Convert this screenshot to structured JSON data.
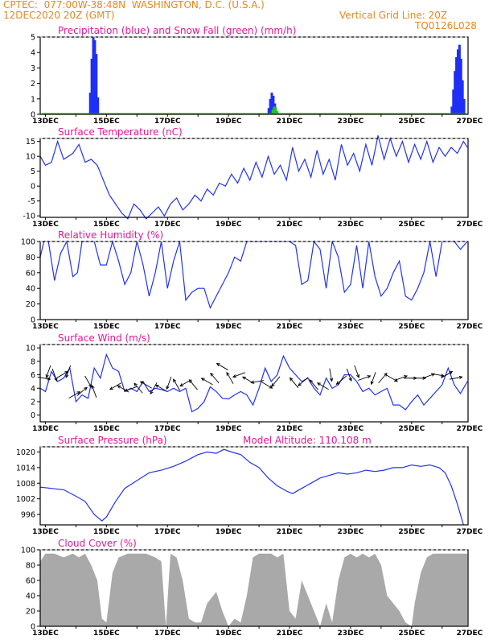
{
  "header": {
    "line1_left": "CPTEC:  077:00W-38:48N  WASHINGTON, D.C. (U.S.A.)",
    "line2_left": "12DEC2020 20Z (GMT)",
    "line2_right": "Vertical Grid Line: 20Z",
    "line3_right": "TQ0126L028"
  },
  "colors": {
    "header": "#e8871e",
    "panel_title": "#e0189a",
    "precip": "#1f2ff5",
    "snow": "#1ec51e",
    "line": "#2233ee",
    "cloud": "#a9a9a9",
    "arrow": "#000000"
  },
  "chart_data": [
    {
      "id": "precip",
      "type": "bar",
      "title": "Precipitation (blue) and Snow Fall (green) (mm/h)",
      "x_tick_labels": [
        "13DEC",
        "15DEC",
        "17DEC",
        "19DEC",
        "21DEC",
        "23DEC",
        "25DEC",
        "27DEC"
      ],
      "ylim": [
        0,
        5
      ],
      "y_ticks": [
        0,
        1,
        2,
        3,
        4,
        5
      ],
      "series": [
        {
          "color": "#1f2ff5",
          "x": [
            14.47,
            14.52,
            14.57,
            14.62,
            14.67,
            14.72,
            20.32,
            20.37,
            20.42,
            20.47,
            20.52,
            20.57,
            26.32,
            26.37,
            26.42,
            26.47,
            26.52,
            26.57,
            26.62,
            26.67,
            26.72
          ],
          "values": [
            1.4,
            3.6,
            5.0,
            4.8,
            3.9,
            1.1,
            0.4,
            1.0,
            1.4,
            1.2,
            0.7,
            0.2,
            0.5,
            1.6,
            2.8,
            3.7,
            4.2,
            4.5,
            3.6,
            2.2,
            1.0
          ]
        },
        {
          "color": "#1ec51e",
          "x": [
            20.45,
            20.5,
            20.55,
            20.6
          ],
          "values": [
            0.3,
            0.5,
            0.45,
            0.2
          ]
        }
      ]
    },
    {
      "id": "temperature",
      "type": "line",
      "title": "Surface Temperature (nC)",
      "x_tick_labels": [
        "13DEC",
        "15DEC",
        "17DEC",
        "19DEC",
        "21DEC",
        "23DEC",
        "25DEC",
        "27DEC"
      ],
      "ylim": [
        -10.5,
        16
      ],
      "y_ticks": [
        -10,
        -5,
        0,
        5,
        10,
        15
      ],
      "x": [
        12.83,
        13.0,
        13.2,
        13.4,
        13.6,
        13.75,
        13.9,
        14.1,
        14.3,
        14.5,
        14.7,
        14.9,
        15.1,
        15.3,
        15.5,
        15.7,
        15.9,
        16.1,
        16.3,
        16.5,
        16.7,
        16.9,
        17.1,
        17.3,
        17.5,
        17.7,
        17.9,
        18.1,
        18.3,
        18.5,
        18.7,
        18.9,
        19.1,
        19.3,
        19.5,
        19.7,
        19.9,
        20.1,
        20.3,
        20.5,
        20.7,
        20.9,
        21.1,
        21.3,
        21.5,
        21.7,
        21.9,
        22.1,
        22.3,
        22.5,
        22.7,
        22.9,
        23.1,
        23.3,
        23.5,
        23.7,
        23.9,
        24.1,
        24.3,
        24.5,
        24.7,
        24.9,
        25.1,
        25.3,
        25.5,
        25.7,
        25.9,
        26.1,
        26.3,
        26.5,
        26.7,
        26.83
      ],
      "values": [
        10,
        7,
        8,
        15,
        9,
        10,
        11,
        14,
        8,
        9,
        7,
        2,
        -3,
        -6,
        -9,
        -11,
        -6,
        -8,
        -11,
        -9,
        -7,
        -10,
        -6,
        -4,
        -8,
        -6,
        -3,
        -5,
        -1,
        -3,
        1,
        0,
        4,
        1,
        6,
        2,
        8,
        3,
        10,
        4,
        7,
        2,
        13,
        5,
        9,
        3,
        12,
        4,
        9,
        2,
        14,
        7,
        11,
        5,
        14,
        7,
        17,
        9,
        16,
        10,
        15,
        8,
        14,
        9,
        15,
        8,
        13,
        10,
        13,
        11,
        15,
        13
      ]
    },
    {
      "id": "humidity",
      "type": "line",
      "title": "Relative Humidity (%)",
      "x_tick_labels": [
        "13DEC",
        "15DEC",
        "17DEC",
        "19DEC",
        "21DEC",
        "23DEC",
        "25DEC",
        "27DEC"
      ],
      "ylim": [
        0,
        100
      ],
      "y_ticks": [
        0,
        20,
        40,
        60,
        80,
        100
      ],
      "x": [
        12.83,
        12.95,
        13.1,
        13.3,
        13.5,
        13.7,
        13.9,
        14.05,
        14.2,
        14.4,
        14.6,
        14.8,
        15.0,
        15.2,
        15.4,
        15.6,
        15.8,
        16.0,
        16.2,
        16.4,
        16.6,
        16.8,
        17.0,
        17.2,
        17.4,
        17.6,
        17.8,
        18.0,
        18.2,
        18.4,
        18.6,
        18.8,
        19.0,
        19.2,
        19.4,
        19.6,
        19.8,
        20.0,
        20.2,
        20.4,
        20.6,
        20.8,
        21.0,
        21.2,
        21.4,
        21.6,
        21.8,
        22.0,
        22.2,
        22.4,
        22.6,
        22.8,
        23.0,
        23.2,
        23.4,
        23.6,
        23.8,
        24.0,
        24.2,
        24.4,
        24.6,
        24.8,
        25.0,
        25.2,
        25.4,
        25.6,
        25.8,
        26.0,
        26.2,
        26.4,
        26.6,
        26.83
      ],
      "values": [
        80,
        100,
        100,
        50,
        85,
        100,
        55,
        60,
        100,
        100,
        100,
        70,
        70,
        100,
        75,
        45,
        60,
        100,
        70,
        30,
        60,
        100,
        40,
        75,
        100,
        25,
        35,
        40,
        40,
        15,
        30,
        45,
        60,
        80,
        75,
        100,
        100,
        100,
        100,
        100,
        100,
        100,
        100,
        95,
        45,
        50,
        100,
        90,
        40,
        100,
        80,
        35,
        45,
        95,
        40,
        100,
        55,
        30,
        40,
        60,
        75,
        30,
        25,
        40,
        60,
        100,
        55,
        100,
        100,
        100,
        90,
        100
      ]
    },
    {
      "id": "wind",
      "type": "line",
      "title": "Surface Wind (m/s)",
      "x_tick_labels": [
        "13DEC",
        "15DEC",
        "17DEC",
        "19DEC",
        "21DEC",
        "23DEC",
        "25DEC",
        "27DEC"
      ],
      "ylim": [
        -1,
        10.5
      ],
      "y_ticks": [
        0,
        2,
        4,
        6,
        8,
        10
      ],
      "x": [
        12.83,
        13.0,
        13.2,
        13.4,
        13.6,
        13.8,
        14.0,
        14.2,
        14.4,
        14.6,
        14.8,
        15.0,
        15.2,
        15.4,
        15.6,
        15.8,
        16.0,
        16.2,
        16.4,
        16.6,
        16.8,
        17.0,
        17.2,
        17.4,
        17.6,
        17.8,
        18.0,
        18.2,
        18.4,
        18.6,
        18.8,
        19.0,
        19.2,
        19.4,
        19.6,
        19.8,
        20.0,
        20.2,
        20.4,
        20.6,
        20.8,
        21.0,
        21.2,
        21.4,
        21.6,
        21.8,
        22.0,
        22.2,
        22.4,
        22.6,
        22.8,
        23.0,
        23.2,
        23.4,
        23.6,
        23.8,
        24.0,
        24.2,
        24.4,
        24.6,
        24.8,
        25.0,
        25.2,
        25.4,
        25.6,
        25.8,
        26.0,
        26.2,
        26.4,
        26.6,
        26.83
      ],
      "values": [
        4,
        3.5,
        6.5,
        5,
        5.5,
        7,
        2,
        3,
        2.5,
        7,
        5.5,
        9,
        7,
        6.5,
        3.5,
        4,
        3.5,
        5,
        3.5,
        4,
        3.8,
        3.5,
        4,
        3.5,
        4,
        0.5,
        1,
        2,
        4.2,
        3.5,
        2.5,
        2.4,
        3,
        3.5,
        3,
        1.5,
        4,
        7,
        5,
        6,
        8.8,
        7,
        6,
        5,
        5.5,
        4,
        3,
        5.5,
        4,
        4.5,
        6,
        6,
        5,
        3.5,
        4,
        3,
        3.5,
        4,
        1.5,
        1.5,
        0.8,
        2,
        3,
        1.5,
        2.5,
        3.5,
        4.5,
        7,
        4.5,
        3.2,
        5
      ]
    },
    {
      "id": "pressure",
      "type": "line",
      "title": "Surface Pressure (hPa)",
      "annotation": "Model Altitude: 110.108 m",
      "x_tick_labels": [
        "13DEC",
        "15DEC",
        "17DEC",
        "19DEC",
        "21DEC",
        "23DEC",
        "25DEC",
        "27DEC"
      ],
      "ylim": [
        992,
        1022
      ],
      "y_ticks": [
        996,
        1002,
        1008,
        1014,
        1020
      ],
      "x": [
        12.83,
        13.2,
        13.6,
        14.0,
        14.3,
        14.6,
        14.85,
        15.0,
        15.3,
        15.6,
        16.0,
        16.4,
        16.8,
        17.2,
        17.6,
        18.0,
        18.3,
        18.6,
        18.85,
        19.1,
        19.4,
        19.7,
        20.0,
        20.3,
        20.6,
        20.9,
        21.1,
        21.4,
        21.7,
        22.0,
        22.3,
        22.6,
        22.9,
        23.2,
        23.5,
        23.8,
        24.1,
        24.4,
        24.7,
        25.0,
        25.3,
        25.6,
        25.9,
        26.1,
        26.3,
        26.5,
        26.7
      ],
      "values": [
        1006.5,
        1006,
        1005.5,
        1003,
        1001,
        996,
        993.5,
        995,
        1001,
        1006,
        1009,
        1012,
        1013,
        1014.5,
        1016.5,
        1019,
        1020,
        1019.5,
        1021,
        1020,
        1019,
        1016,
        1014,
        1010,
        1007,
        1005,
        1004,
        1006,
        1008,
        1010,
        1011,
        1012,
        1011.5,
        1012,
        1013,
        1012.5,
        1013,
        1014,
        1014,
        1015,
        1014.5,
        1015,
        1014,
        1012,
        1007,
        1000,
        992
      ]
    },
    {
      "id": "cloud",
      "type": "area",
      "title": "Cloud Cover (%)",
      "x_tick_labels": [
        "13DEC",
        "15DEC",
        "17DEC",
        "19DEC",
        "21DEC",
        "23DEC",
        "25DEC",
        "27DEC"
      ],
      "ylim": [
        0,
        100
      ],
      "y_ticks": [
        0,
        20,
        40,
        60,
        80,
        100
      ],
      "x": [
        12.83,
        13.0,
        13.3,
        13.6,
        13.9,
        14.1,
        14.3,
        14.5,
        14.7,
        14.85,
        15.0,
        15.2,
        15.4,
        15.7,
        16.0,
        16.3,
        16.6,
        16.8,
        16.95,
        17.1,
        17.3,
        17.5,
        17.7,
        17.9,
        18.1,
        18.3,
        18.6,
        18.8,
        19.0,
        19.2,
        19.4,
        19.6,
        19.8,
        20.0,
        20.2,
        20.4,
        20.6,
        20.8,
        21.0,
        21.2,
        21.4,
        21.6,
        21.8,
        22.0,
        22.2,
        22.4,
        22.6,
        22.8,
        23.0,
        23.2,
        23.4,
        23.6,
        23.8,
        24.0,
        24.2,
        24.4,
        24.6,
        24.8,
        25.0,
        25.1,
        25.3,
        25.5,
        25.7,
        26.0,
        26.3,
        26.6,
        26.83
      ],
      "values": [
        85,
        95,
        95,
        90,
        95,
        90,
        95,
        80,
        60,
        10,
        5,
        70,
        90,
        95,
        95,
        95,
        90,
        85,
        0,
        95,
        90,
        60,
        10,
        5,
        5,
        30,
        45,
        20,
        0,
        10,
        5,
        40,
        90,
        95,
        95,
        95,
        90,
        95,
        20,
        10,
        60,
        40,
        20,
        0,
        30,
        5,
        60,
        90,
        95,
        90,
        95,
        90,
        95,
        80,
        40,
        30,
        20,
        5,
        0,
        30,
        70,
        90,
        95,
        95,
        95,
        95,
        95
      ]
    }
  ],
  "wind_arrows": [
    {
      "t": 12.95,
      "v": 5.5,
      "dir": 100
    },
    {
      "t": 13.1,
      "v": 6.5,
      "dir": 200
    },
    {
      "t": 13.3,
      "v": 6,
      "dir": 160
    },
    {
      "t": 13.55,
      "v": 6,
      "dir": 60
    },
    {
      "t": 13.75,
      "v": 6.5,
      "dir": 200
    },
    {
      "t": 13.95,
      "v": 3,
      "dir": 60
    },
    {
      "t": 14.2,
      "v": 3.5,
      "dir": 50
    },
    {
      "t": 14.4,
      "v": 5,
      "dir": 150
    },
    {
      "t": 14.6,
      "v": 3.5,
      "dir": 340
    },
    {
      "t": 15.3,
      "v": 4.3,
      "dir": 240
    },
    {
      "t": 15.55,
      "v": 3.9,
      "dir": 300
    },
    {
      "t": 15.8,
      "v": 3.9,
      "dir": 250
    },
    {
      "t": 16.05,
      "v": 4,
      "dir": 320
    },
    {
      "t": 16.3,
      "v": 4.5,
      "dir": 300
    },
    {
      "t": 16.55,
      "v": 4,
      "dir": 210
    },
    {
      "t": 16.8,
      "v": 4,
      "dir": 300
    },
    {
      "t": 17.05,
      "v": 4.8,
      "dir": 200
    },
    {
      "t": 17.3,
      "v": 4.5,
      "dir": 330
    },
    {
      "t": 17.6,
      "v": 4.8,
      "dir": 240
    },
    {
      "t": 17.85,
      "v": 4.5,
      "dir": 320
    },
    {
      "t": 18.3,
      "v": 5,
      "dir": 300
    },
    {
      "t": 18.55,
      "v": 5.5,
      "dir": 320
    },
    {
      "t": 18.8,
      "v": 7.2,
      "dir": 300
    },
    {
      "t": 19.05,
      "v": 5.5,
      "dir": 330
    },
    {
      "t": 19.35,
      "v": 6,
      "dir": 250
    },
    {
      "t": 19.65,
      "v": 5.2,
      "dir": 300
    },
    {
      "t": 19.95,
      "v": 5,
      "dir": 260
    },
    {
      "t": 20.25,
      "v": 4.5,
      "dir": 120
    },
    {
      "t": 20.55,
      "v": 5,
      "dir": 220
    },
    {
      "t": 21.15,
      "v": 4.8,
      "dir": 320
    },
    {
      "t": 21.45,
      "v": 5,
      "dir": 230
    },
    {
      "t": 21.8,
      "v": 4.5,
      "dir": 320
    },
    {
      "t": 22.1,
      "v": 4.3,
      "dir": 300
    },
    {
      "t": 22.35,
      "v": 6,
      "dir": 170
    },
    {
      "t": 22.7,
      "v": 5.2,
      "dir": 230
    },
    {
      "t": 22.95,
      "v": 6,
      "dir": 160
    },
    {
      "t": 23.2,
      "v": 6.5,
      "dir": 160
    },
    {
      "t": 23.45,
      "v": 5.5,
      "dir": 70
    },
    {
      "t": 23.75,
      "v": 5.5,
      "dir": 200
    },
    {
      "t": 24.05,
      "v": 5.5,
      "dir": 40
    },
    {
      "t": 24.35,
      "v": 5.5,
      "dir": 120
    },
    {
      "t": 24.65,
      "v": 5.5,
      "dir": 70
    },
    {
      "t": 24.95,
      "v": 5.5,
      "dir": 90
    },
    {
      "t": 25.25,
      "v": 5.5,
      "dir": 90
    },
    {
      "t": 25.55,
      "v": 5.8,
      "dir": 70
    },
    {
      "t": 25.85,
      "v": 6,
      "dir": 100
    },
    {
      "t": 26.15,
      "v": 6,
      "dir": 60
    },
    {
      "t": 26.45,
      "v": 5.5,
      "dir": 80
    }
  ],
  "axis_range": [
    12.83,
    26.85
  ],
  "x_tick_positions": [
    13,
    15,
    17,
    19,
    21,
    23,
    25,
    26.9
  ]
}
